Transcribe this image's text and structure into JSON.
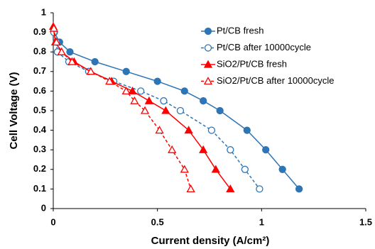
{
  "chart_data": {
    "type": "scatter",
    "x_label": "Current density  (A/cm²)",
    "y_label": "Cell Voltage  (V)",
    "xlim": [
      0,
      1.5
    ],
    "xticks": [
      0,
      0.5,
      1,
      1.5
    ],
    "ylim": [
      0,
      1
    ],
    "yticks": [
      0,
      0.1,
      0.2,
      0.3,
      0.4,
      0.5,
      0.6,
      0.7,
      0.8,
      0.9,
      1
    ],
    "grid": false,
    "legend": "upper right",
    "series": [
      {
        "name": "Pt/CB fresh",
        "color": "#2e75b6",
        "marker": "circle",
        "filled": true,
        "dashed": false,
        "x": [
          0.005,
          0.03,
          0.08,
          0.2,
          0.35,
          0.5,
          0.63,
          0.72,
          0.8,
          0.93,
          1.02,
          1.1,
          1.18
        ],
        "values": [
          0.9,
          0.85,
          0.8,
          0.75,
          0.7,
          0.65,
          0.6,
          0.55,
          0.5,
          0.4,
          0.3,
          0.2,
          0.1
        ]
      },
      {
        "name": "Pt/CB after 10000cycle",
        "color": "#2e75b6",
        "marker": "circle",
        "filled": false,
        "dashed": true,
        "x": [
          0.003,
          0.015,
          0.02,
          0.075,
          0.17,
          0.29,
          0.42,
          0.53,
          0.61,
          0.76,
          0.85,
          0.92,
          0.99
        ],
        "values": [
          0.9,
          0.85,
          0.8,
          0.75,
          0.7,
          0.65,
          0.6,
          0.55,
          0.5,
          0.4,
          0.3,
          0.2,
          0.1
        ]
      },
      {
        "name": "SiO2/Pt/CB fresh",
        "color": "#ff0000",
        "marker": "triangle",
        "filled": true,
        "dashed": false,
        "x": [
          0,
          0.01,
          0.04,
          0.1,
          0.18,
          0.28,
          0.38,
          0.46,
          0.54,
          0.65,
          0.72,
          0.78,
          0.85
        ],
        "values": [
          0.93,
          0.85,
          0.8,
          0.75,
          0.7,
          0.65,
          0.6,
          0.55,
          0.5,
          0.4,
          0.3,
          0.2,
          0.1
        ]
      },
      {
        "name": "SiO2/Pt/CB after 10000cycle",
        "color": "#ff0000",
        "marker": "triangle",
        "filled": false,
        "dashed": true,
        "x": [
          0.003,
          0.015,
          0.04,
          0.09,
          0.18,
          0.27,
          0.35,
          0.39,
          0.44,
          0.51,
          0.57,
          0.63,
          0.66
        ],
        "values": [
          0.92,
          0.85,
          0.8,
          0.75,
          0.7,
          0.65,
          0.6,
          0.55,
          0.5,
          0.4,
          0.3,
          0.2,
          0.1
        ]
      }
    ]
  }
}
